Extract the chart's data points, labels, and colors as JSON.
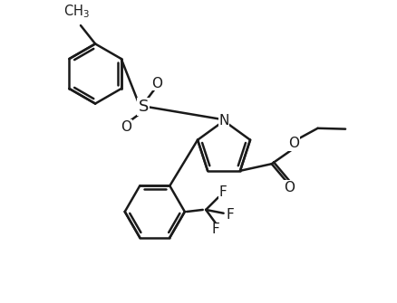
{
  "bg_color": "#ffffff",
  "line_color": "#1a1a1a",
  "line_width": 1.8,
  "font_size": 11,
  "fig_width": 4.39,
  "fig_height": 3.35,
  "dpi": 100,
  "xlim": [
    0,
    10
  ],
  "ylim": [
    0,
    7.6
  ]
}
